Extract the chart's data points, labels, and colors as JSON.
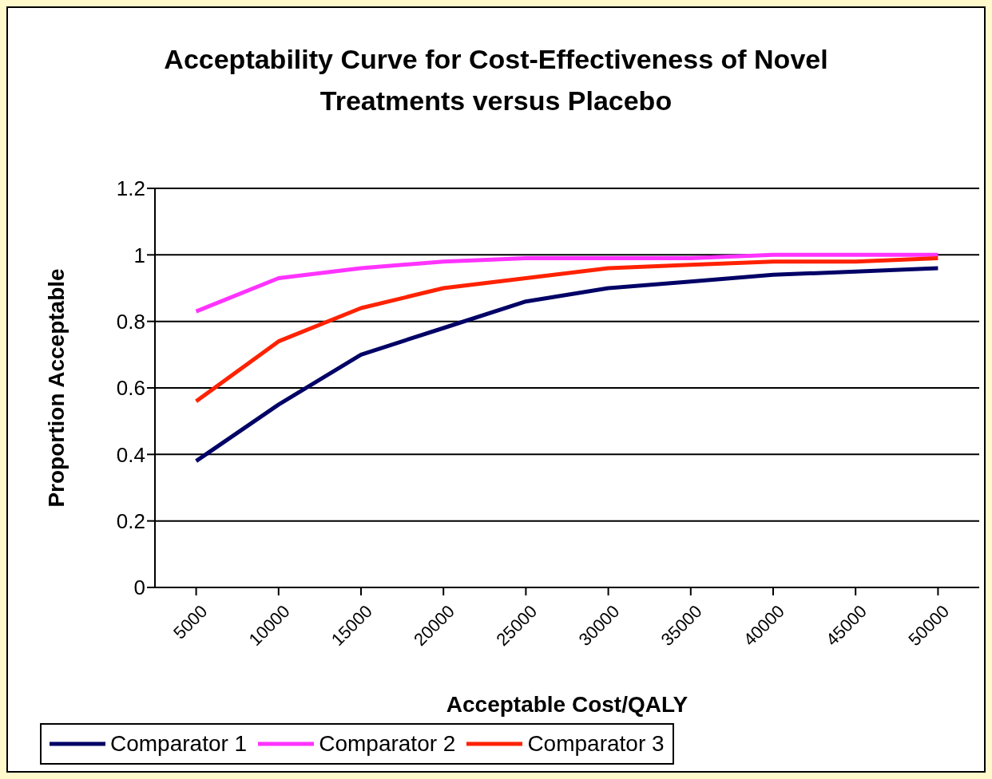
{
  "chart_data": {
    "type": "line",
    "title": "Acceptability Curve for Cost-Effectiveness of Novel Treatments versus Placebo",
    "xlabel": "Acceptable Cost/QALY",
    "ylabel": "Proportion Acceptable",
    "categories": [
      "5000",
      "10000",
      "15000",
      "20000",
      "25000",
      "30000",
      "35000",
      "40000",
      "45000",
      "50000"
    ],
    "series": [
      {
        "name": "Comparator 1",
        "color": "#000066",
        "values": [
          0.38,
          0.55,
          0.7,
          0.78,
          0.86,
          0.9,
          0.92,
          0.94,
          0.95,
          0.96
        ]
      },
      {
        "name": "Comparator 2",
        "color": "#ff33ff",
        "values": [
          0.83,
          0.93,
          0.96,
          0.98,
          0.99,
          0.99,
          0.99,
          1.0,
          1.0,
          1.0
        ]
      },
      {
        "name": "Comparator 3",
        "color": "#ff2200",
        "values": [
          0.56,
          0.74,
          0.84,
          0.9,
          0.93,
          0.96,
          0.97,
          0.98,
          0.98,
          0.99
        ]
      }
    ],
    "ylim": [
      0,
      1.2
    ],
    "yticks": [
      0,
      0.2,
      0.4,
      0.6,
      0.8,
      1,
      1.2
    ],
    "grid": "y",
    "legend": "bottom",
    "marker": "none",
    "line_style": "solid"
  }
}
